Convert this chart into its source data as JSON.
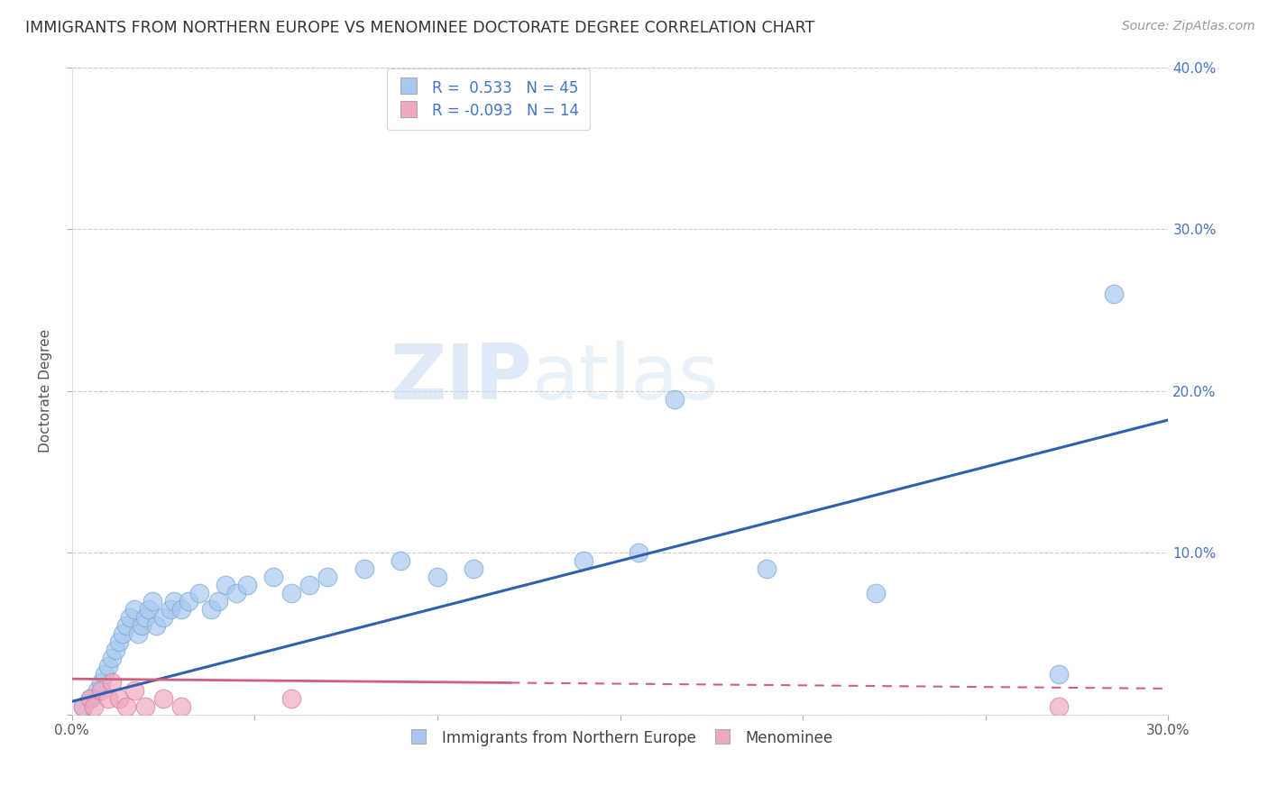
{
  "title": "IMMIGRANTS FROM NORTHERN EUROPE VS MENOMINEE DOCTORATE DEGREE CORRELATION CHART",
  "source": "Source: ZipAtlas.com",
  "ylabel": "Doctorate Degree",
  "legend_labels": [
    "Immigrants from Northern Europe",
    "Menominee"
  ],
  "R_blue": 0.533,
  "N_blue": 45,
  "R_pink": -0.093,
  "N_pink": 14,
  "xlim": [
    0.0,
    0.3
  ],
  "ylim": [
    0.0,
    0.4
  ],
  "xticks": [
    0.0,
    0.05,
    0.1,
    0.15,
    0.2,
    0.25,
    0.3
  ],
  "yticks": [
    0.0,
    0.1,
    0.2,
    0.3,
    0.4
  ],
  "right_ytick_labels": [
    "",
    "10.0%",
    "20.0%",
    "30.0%",
    "40.0%"
  ],
  "blue_color": "#a8c8f0",
  "pink_color": "#f0a8be",
  "blue_edge_color": "#7aaad0",
  "pink_edge_color": "#d08098",
  "blue_line_color": "#3060b0",
  "pink_line_color": "#d06080",
  "scatter_alpha": 0.7,
  "watermark_zip": "ZIP",
  "watermark_atlas": "atlas",
  "blue_scatter_x": [
    0.003,
    0.005,
    0.007,
    0.008,
    0.009,
    0.01,
    0.011,
    0.012,
    0.013,
    0.014,
    0.015,
    0.016,
    0.017,
    0.018,
    0.019,
    0.02,
    0.021,
    0.022,
    0.023,
    0.025,
    0.027,
    0.028,
    0.03,
    0.032,
    0.035,
    0.038,
    0.04,
    0.042,
    0.045,
    0.048,
    0.055,
    0.06,
    0.065,
    0.07,
    0.08,
    0.09,
    0.1,
    0.11,
    0.14,
    0.155,
    0.165,
    0.19,
    0.22,
    0.27,
    0.285
  ],
  "blue_scatter_y": [
    0.005,
    0.01,
    0.015,
    0.02,
    0.025,
    0.03,
    0.035,
    0.04,
    0.045,
    0.05,
    0.055,
    0.06,
    0.065,
    0.05,
    0.055,
    0.06,
    0.065,
    0.07,
    0.055,
    0.06,
    0.065,
    0.07,
    0.065,
    0.07,
    0.075,
    0.065,
    0.07,
    0.08,
    0.075,
    0.08,
    0.085,
    0.075,
    0.08,
    0.085,
    0.09,
    0.095,
    0.085,
    0.09,
    0.095,
    0.1,
    0.195,
    0.09,
    0.075,
    0.025,
    0.26
  ],
  "pink_scatter_x": [
    0.003,
    0.005,
    0.006,
    0.008,
    0.01,
    0.011,
    0.013,
    0.015,
    0.017,
    0.02,
    0.025,
    0.03,
    0.06,
    0.27
  ],
  "pink_scatter_y": [
    0.005,
    0.01,
    0.005,
    0.015,
    0.01,
    0.02,
    0.01,
    0.005,
    0.015,
    0.005,
    0.01,
    0.005,
    0.01,
    0.005
  ]
}
